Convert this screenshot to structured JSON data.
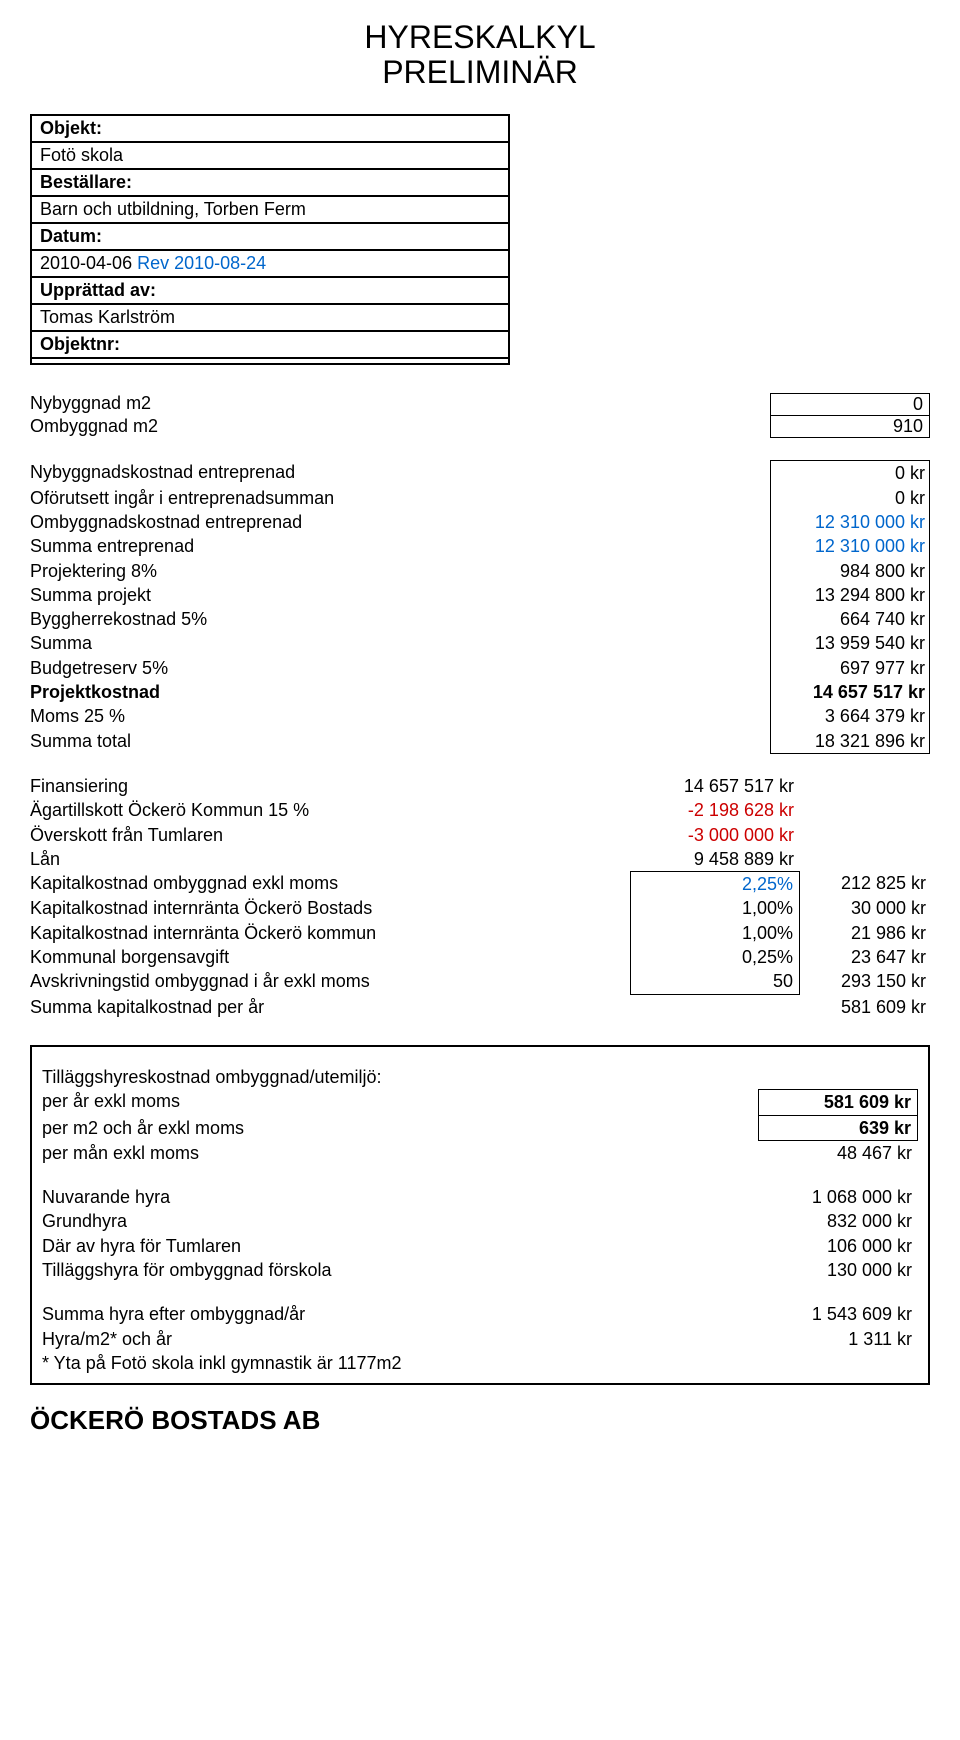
{
  "title_line1": "HYRESKALKYL",
  "title_line2": "PRELIMINÄR",
  "meta": {
    "objekt_label": "Objekt:",
    "objekt_value": "Fotö skola",
    "bestallare_label": "Beställare:",
    "bestallare_value": "Barn och utbildning, Torben Ferm",
    "datum_label": "Datum:",
    "datum_value": "2010-04-06",
    "datum_rev": " Rev 2010-08-24",
    "upprattad_label": "Upprättad av:",
    "upprattad_value": "Tomas Karlström",
    "objektnr_label": "Objektnr:",
    "objektnr_value": ""
  },
  "area": {
    "nybyggnad_label": "Nybyggnad  m2",
    "nybyggnad_val": "0",
    "ombyggnad_label": "Ombyggnad  m2",
    "ombyggnad_val": "910"
  },
  "costs": [
    {
      "label": "Nybyggnadskostnad entreprenad",
      "val": "0 kr"
    },
    {
      "label": "Oförutsett ingår i entreprenadsumman",
      "val": "0 kr"
    },
    {
      "label": "Ombyggnadskostnad entreprenad",
      "val": "12 310 000 kr",
      "blue": true
    },
    {
      "label": "Summa entreprenad",
      "val": "12 310 000 kr",
      "blue": true
    },
    {
      "label": "Projektering 8%",
      "val": "984 800 kr"
    },
    {
      "label": "Summa projekt",
      "val": "13 294 800 kr"
    },
    {
      "label": "Byggherrekostnad 5%",
      "val": "664 740 kr"
    },
    {
      "label": "Summa",
      "val": "13 959 540 kr"
    },
    {
      "label": "Budgetreserv 5%",
      "val": "697 977 kr"
    },
    {
      "label": "Projektkostnad",
      "val": "14 657 517 kr",
      "bold": true
    },
    {
      "label": "Moms 25 %",
      "val": "3 664 379 kr"
    },
    {
      "label": "Summa total",
      "val": "18 321 896 kr"
    }
  ],
  "financing": [
    {
      "label": "Finansiering",
      "mid": "14 657 517 kr"
    },
    {
      "label": "Ägartillskott Öckerö Kommun 15 %",
      "mid": "-2 198 628 kr",
      "red": true
    },
    {
      "label": "Överskott från Tumlaren",
      "mid": "-3 000 000 kr",
      "red": true
    },
    {
      "label": "Lån",
      "mid": "9 458 889 kr"
    },
    {
      "label": "Kapitalkostnad ombyggnad exkl moms",
      "mid": "2,25%",
      "blue": true,
      "right": "212 825 kr",
      "boxed": "first"
    },
    {
      "label": "Kapitalkostnad internränta Öckerö Bostads",
      "mid": "1,00%",
      "right": "30 000 kr",
      "boxed": "mid"
    },
    {
      "label": "Kapitalkostnad internränta Öckerö kommun",
      "mid": "1,00%",
      "right": "21 986 kr",
      "boxed": "mid"
    },
    {
      "label": "Kommunal borgensavgift",
      "mid": "0,25%",
      "right": "23 647 kr",
      "boxed": "mid"
    },
    {
      "label": "Avskrivningstid ombyggnad i år exkl moms",
      "mid": "50",
      "right": "293 150 kr",
      "boxed": "last"
    },
    {
      "label": "Summa kapitalkostnad per år",
      "mid": "",
      "right": "581 609 kr"
    }
  ],
  "extra": {
    "heading": "Tilläggshyreskostnad ombyggnad/utemiljö:",
    "rows1": [
      {
        "label": "per år exkl moms",
        "val": "581 609 kr",
        "boxed": true,
        "bold": true
      },
      {
        "label": "per m2 och år exkl moms",
        "val": "639 kr",
        "boxed": true,
        "bold": true
      },
      {
        "label": "per mån exkl moms",
        "val": "48 467 kr"
      }
    ],
    "rows2": [
      {
        "label": "Nuvarande hyra",
        "val": "1 068 000 kr"
      },
      {
        "label": "Grundhyra",
        "val": "832 000 kr"
      },
      {
        "label": "Där av hyra för Tumlaren",
        "val": "106 000 kr"
      },
      {
        "label": "Tilläggshyra för ombyggnad förskola",
        "val": "130 000 kr"
      }
    ],
    "rows3": [
      {
        "label": "Summa hyra efter ombyggnad/år",
        "val": "1 543 609 kr"
      },
      {
        "label": "Hyra/m2* och år",
        "val": "1 311 kr"
      }
    ],
    "footnote": "* Yta på Fotö skola inkl gymnastik är 1177m2"
  },
  "brand": "ÖCKERÖ BOSTADS AB"
}
